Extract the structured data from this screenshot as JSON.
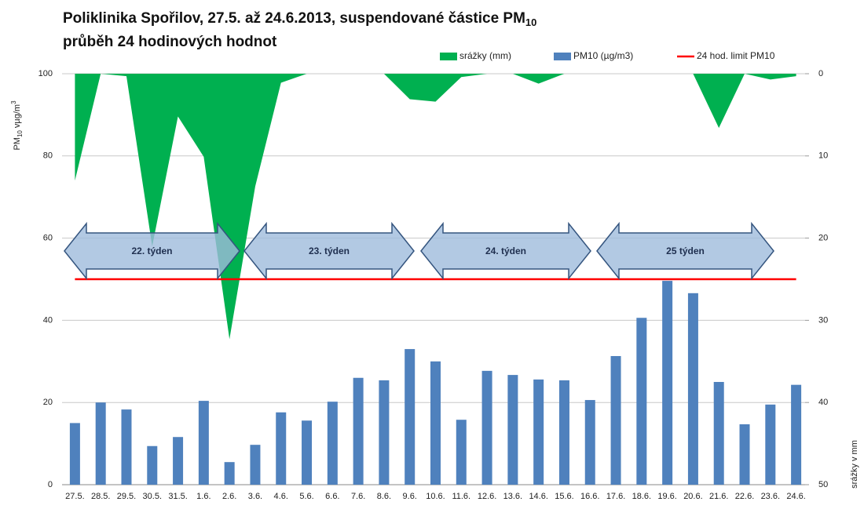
{
  "chart_data": {
    "type": "bar",
    "title": "Poliklinika Spořilov, 27.5. až 24.6.2013, suspendované částice PM",
    "title_subscript": "10",
    "subtitle": "průběh 24 hodinových hodnot",
    "y_label": [
      "PM",
      "10",
      " vµg/m",
      "3"
    ],
    "y2_label": "srážky v mm",
    "categories": [
      "27.5.",
      "28.5.",
      "29.5.",
      "30.5.",
      "31.5.",
      "1.6.",
      "2.6.",
      "3.6.",
      "4.6.",
      "5.6.",
      "6.6.",
      "7.6.",
      "8.6.",
      "9.6.",
      "10.6.",
      "11.6.",
      "12.6.",
      "13.6.",
      "14.6.",
      "15.6.",
      "16.6.",
      "17.6.",
      "18.6.",
      "19.6.",
      "20.6.",
      "21.6.",
      "22.6.",
      "23.6.",
      "24.6."
    ],
    "series": [
      {
        "name": "srážky (mm)",
        "type": "area",
        "axis": "y2",
        "color": "#00b050",
        "values": [
          13,
          0,
          0.3,
          21,
          5.2,
          10.1,
          32.3,
          13.7,
          1.1,
          0,
          0,
          0,
          0,
          3.1,
          3.4,
          0.4,
          0,
          0,
          1.2,
          0,
          0,
          0,
          0,
          0,
          0,
          6.6,
          0,
          0.7,
          0.3
        ]
      },
      {
        "name": "PM10 (µg/m3)",
        "type": "bar",
        "color": "#4f81bd",
        "values": [
          15,
          20,
          18.3,
          9.4,
          11.6,
          20.4,
          5.5,
          9.7,
          17.6,
          15.6,
          20.2,
          26,
          25.4,
          33,
          30,
          15.8,
          27.7,
          26.7,
          25.6,
          25.4,
          20.6,
          31.3,
          40.6,
          49.6,
          46.6,
          25,
          14.7,
          19.5,
          24.3
        ]
      },
      {
        "name": "24 hod. limit PM10",
        "type": "line",
        "color": "#ff0000",
        "values": [
          50,
          50,
          50,
          50,
          50,
          50,
          50,
          50,
          50,
          50,
          50,
          50,
          50,
          50,
          50,
          50,
          50,
          50,
          50,
          50,
          50,
          50,
          50,
          50,
          50,
          50,
          50,
          50,
          50
        ]
      }
    ],
    "ylim": [
      0,
      100
    ],
    "yticks": [
      0,
      20,
      40,
      60,
      80,
      100
    ],
    "y2lim": [
      0,
      50
    ],
    "y2ticks": [
      0,
      10,
      20,
      30,
      40,
      50
    ],
    "y2_inverted": true,
    "grid": true,
    "annotations": [
      "22. týden",
      "23. týden",
      "24. týden",
      "25 týden"
    ]
  }
}
